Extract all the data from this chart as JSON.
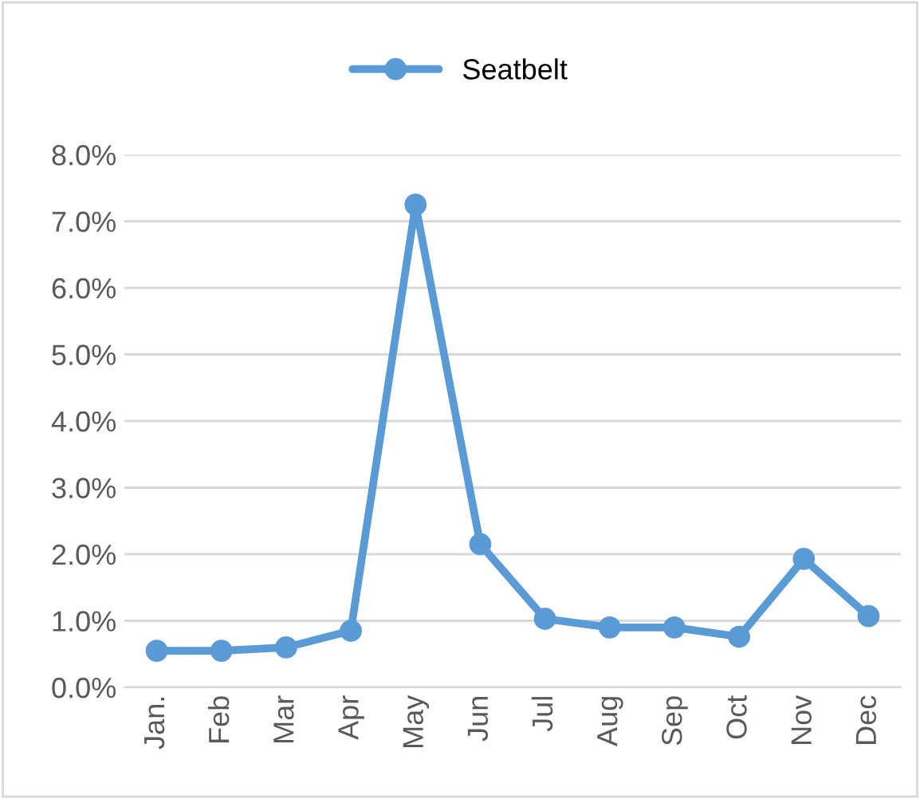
{
  "chart_data": {
    "type": "line",
    "categories": [
      "Jan.",
      "Feb",
      "Mar",
      "Apr",
      "May",
      "Jun",
      "Jul",
      "Aug",
      "Sep",
      "Oct",
      "Nov",
      "Dec"
    ],
    "series": [
      {
        "name": "Seatbelt",
        "color": "#5b9bd5",
        "values": [
          0.55,
          0.55,
          0.6,
          0.85,
          7.25,
          2.15,
          1.03,
          0.9,
          0.9,
          0.76,
          1.93,
          1.07
        ]
      }
    ],
    "ylim": [
      0,
      8
    ],
    "yticks": [
      {
        "value": 0,
        "label": "0.0%"
      },
      {
        "value": 1,
        "label": "1.0%"
      },
      {
        "value": 2,
        "label": "2.0%"
      },
      {
        "value": 3,
        "label": "3.0%"
      },
      {
        "value": 4,
        "label": "4.0%"
      },
      {
        "value": 5,
        "label": "5.0%"
      },
      {
        "value": 6,
        "label": "6.0%"
      },
      {
        "value": 7,
        "label": "7.0%"
      },
      {
        "value": 8,
        "label": "8.0%"
      }
    ],
    "grid": "y",
    "legend": "top",
    "marker": "circle",
    "line_style": "solid"
  }
}
